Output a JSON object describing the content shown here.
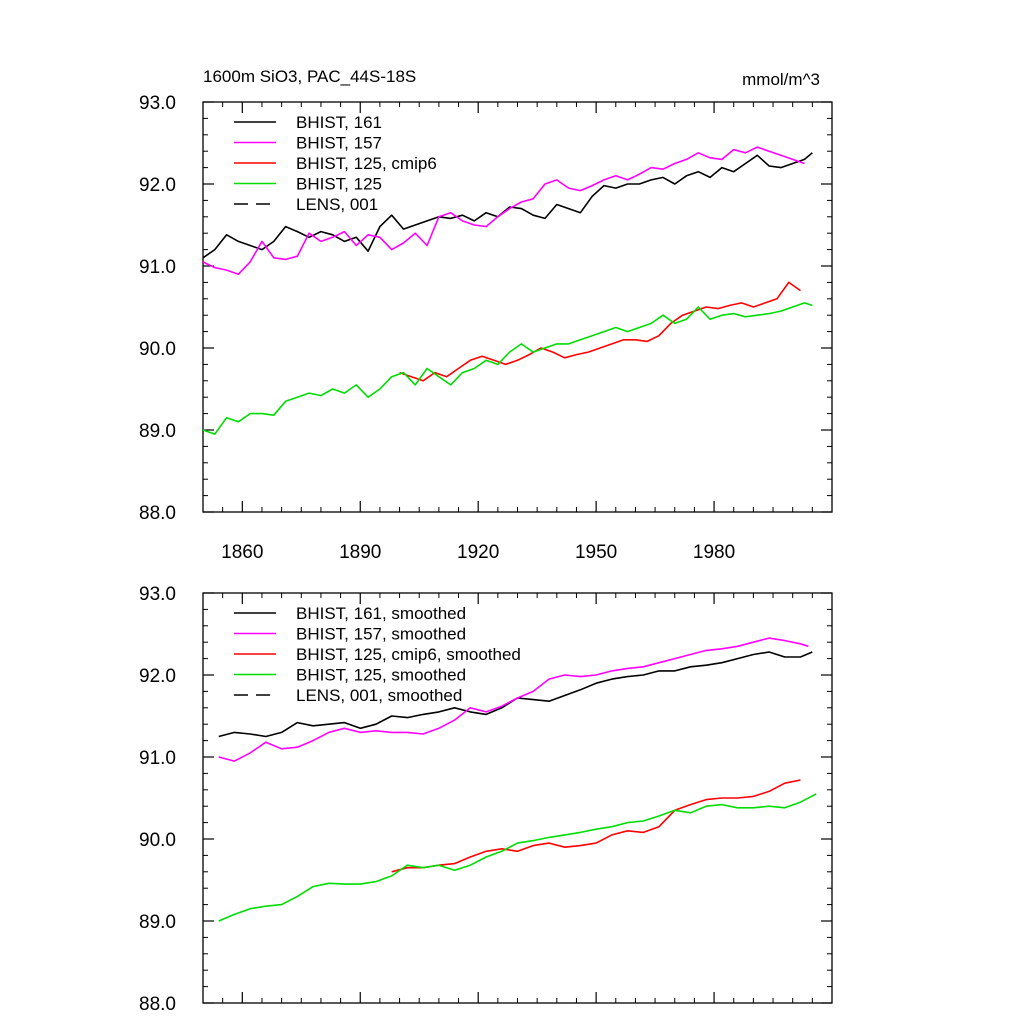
{
  "title": "1600m SiO3, PAC_44S-18S",
  "units": "mmol/m^3",
  "chart_data": [
    {
      "type": "line",
      "panel": "raw",
      "xlim": [
        1850,
        2010
      ],
      "ylim": [
        88.0,
        93.0
      ],
      "xticks": [
        1860,
        1890,
        1920,
        1950,
        1980
      ],
      "xtick_labels": [
        "1860",
        "1890",
        "1920",
        "1950",
        "1980"
      ],
      "yticks": [
        88,
        89,
        90,
        91,
        92,
        93
      ],
      "ytick_labels": [
        "88.0",
        "89.0",
        "90.0",
        "91.0",
        "92.0",
        "93.0"
      ],
      "legend_placement": "top-left",
      "legend": [
        {
          "label": "BHIST, 161",
          "color": "#000000",
          "dash": "solid"
        },
        {
          "label": "BHIST, 157",
          "color": "#ff00ff",
          "dash": "solid"
        },
        {
          "label": "BHIST, 125, cmip6",
          "color": "#ff0000",
          "dash": "solid"
        },
        {
          "label": "BHIST, 125",
          "color": "#00dd00",
          "dash": "solid"
        },
        {
          "label": "LENS, 001",
          "color": "#000000",
          "dash": "dashed"
        }
      ],
      "series": [
        {
          "name": "BHIST, 161",
          "color": "#000000",
          "x": [
            1850,
            1853,
            1856,
            1859,
            1862,
            1865,
            1868,
            1871,
            1874,
            1877,
            1880,
            1883,
            1886,
            1889,
            1892,
            1895,
            1898,
            1901,
            1904,
            1907,
            1910,
            1913,
            1916,
            1919,
            1922,
            1925,
            1928,
            1931,
            1934,
            1937,
            1940,
            1943,
            1946,
            1949,
            1952,
            1955,
            1958,
            1961,
            1964,
            1967,
            1970,
            1973,
            1976,
            1979,
            1982,
            1985,
            1988,
            1991,
            1994,
            1997,
            2000,
            2003,
            2005
          ],
          "y": [
            91.1,
            91.2,
            91.38,
            91.3,
            91.25,
            91.2,
            91.3,
            91.48,
            91.42,
            91.35,
            91.42,
            91.38,
            91.3,
            91.35,
            91.18,
            91.48,
            91.62,
            91.45,
            91.5,
            91.55,
            91.6,
            91.58,
            91.62,
            91.55,
            91.65,
            91.6,
            91.72,
            91.7,
            91.62,
            91.58,
            91.75,
            91.7,
            91.65,
            91.85,
            91.98,
            91.95,
            92.0,
            92.0,
            92.05,
            92.08,
            92.0,
            92.1,
            92.15,
            92.08,
            92.2,
            92.15,
            92.25,
            92.35,
            92.22,
            92.2,
            92.25,
            92.3,
            92.38
          ]
        },
        {
          "name": "BHIST, 157",
          "color": "#ff00ff",
          "x": [
            1850,
            1853,
            1856,
            1859,
            1862,
            1865,
            1868,
            1871,
            1874,
            1877,
            1880,
            1883,
            1886,
            1889,
            1892,
            1895,
            1898,
            1901,
            1904,
            1907,
            1910,
            1913,
            1916,
            1919,
            1922,
            1925,
            1928,
            1931,
            1934,
            1937,
            1940,
            1943,
            1946,
            1949,
            1952,
            1955,
            1958,
            1961,
            1964,
            1967,
            1970,
            1973,
            1976,
            1979,
            1982,
            1985,
            1988,
            1991,
            1994,
            1997,
            2000,
            2003
          ],
          "y": [
            91.05,
            90.98,
            90.95,
            90.9,
            91.05,
            91.3,
            91.1,
            91.08,
            91.12,
            91.4,
            91.3,
            91.35,
            91.42,
            91.25,
            91.38,
            91.35,
            91.2,
            91.28,
            91.4,
            91.25,
            91.6,
            91.65,
            91.55,
            91.5,
            91.48,
            91.6,
            91.7,
            91.78,
            91.82,
            92.0,
            92.05,
            91.95,
            91.92,
            91.98,
            92.05,
            92.1,
            92.05,
            92.12,
            92.2,
            92.18,
            92.25,
            92.3,
            92.38,
            92.32,
            92.3,
            92.42,
            92.38,
            92.45,
            92.4,
            92.35,
            92.3,
            92.25
          ]
        },
        {
          "name": "BHIST, 125, cmip6",
          "color": "#ff0000",
          "x": [
            1900,
            1903,
            1906,
            1909,
            1912,
            1915,
            1918,
            1921,
            1924,
            1927,
            1930,
            1933,
            1936,
            1939,
            1942,
            1945,
            1948,
            1951,
            1954,
            1957,
            1960,
            1963,
            1966,
            1969,
            1972,
            1975,
            1978,
            1981,
            1984,
            1987,
            1990,
            1993,
            1996,
            1999,
            2002
          ],
          "y": [
            89.7,
            89.65,
            89.6,
            89.7,
            89.65,
            89.75,
            89.85,
            89.9,
            89.85,
            89.8,
            89.85,
            89.92,
            90.0,
            89.95,
            89.88,
            89.92,
            89.95,
            90.0,
            90.05,
            90.1,
            90.1,
            90.08,
            90.15,
            90.3,
            90.4,
            90.45,
            90.5,
            90.48,
            90.52,
            90.55,
            90.5,
            90.55,
            90.6,
            90.8,
            90.7
          ]
        },
        {
          "name": "BHIST, 125",
          "color": "#00dd00",
          "x": [
            1850,
            1853,
            1856,
            1859,
            1862,
            1865,
            1868,
            1871,
            1874,
            1877,
            1880,
            1883,
            1886,
            1889,
            1892,
            1895,
            1898,
            1901,
            1904,
            1907,
            1910,
            1913,
            1916,
            1919,
            1922,
            1925,
            1928,
            1931,
            1934,
            1937,
            1940,
            1943,
            1946,
            1949,
            1952,
            1955,
            1958,
            1961,
            1964,
            1967,
            1970,
            1973,
            1976,
            1979,
            1982,
            1985,
            1988,
            1991,
            1994,
            1997,
            2000,
            2003,
            2005
          ],
          "y": [
            89.0,
            88.95,
            89.15,
            89.1,
            89.2,
            89.2,
            89.18,
            89.35,
            89.4,
            89.45,
            89.42,
            89.5,
            89.45,
            89.55,
            89.4,
            89.5,
            89.65,
            89.7,
            89.55,
            89.75,
            89.65,
            89.55,
            89.7,
            89.75,
            89.85,
            89.8,
            89.95,
            90.05,
            89.95,
            90.0,
            90.05,
            90.05,
            90.1,
            90.15,
            90.2,
            90.25,
            90.2,
            90.25,
            90.3,
            90.4,
            90.3,
            90.35,
            90.5,
            90.35,
            90.4,
            90.42,
            90.38,
            90.4,
            90.42,
            90.45,
            90.5,
            90.55,
            90.52
          ]
        }
      ]
    },
    {
      "type": "line",
      "panel": "smoothed",
      "xlim": [
        1850,
        2010
      ],
      "ylim": [
        88.0,
        93.0
      ],
      "xticks": [
        1860,
        1890,
        1920,
        1950,
        1980
      ],
      "yticks": [
        88,
        89,
        90,
        91,
        92,
        93
      ],
      "ytick_labels": [
        "88.0",
        "89.0",
        "90.0",
        "91.0",
        "92.0",
        "93.0"
      ],
      "legend_placement": "top-left",
      "legend": [
        {
          "label": "BHIST, 161, smoothed",
          "color": "#000000",
          "dash": "solid"
        },
        {
          "label": "BHIST, 157, smoothed",
          "color": "#ff00ff",
          "dash": "solid"
        },
        {
          "label": "BHIST, 125, cmip6, smoothed",
          "color": "#ff0000",
          "dash": "solid"
        },
        {
          "label": "BHIST, 125, smoothed",
          "color": "#00dd00",
          "dash": "solid"
        },
        {
          "label": "LENS, 001, smoothed",
          "color": "#000000",
          "dash": "dashed"
        }
      ],
      "series": [
        {
          "name": "BHIST, 161, smoothed",
          "color": "#000000",
          "x": [
            1854,
            1858,
            1862,
            1866,
            1870,
            1874,
            1878,
            1882,
            1886,
            1890,
            1894,
            1898,
            1902,
            1906,
            1910,
            1914,
            1918,
            1922,
            1926,
            1930,
            1934,
            1938,
            1942,
            1946,
            1950,
            1954,
            1958,
            1962,
            1966,
            1970,
            1974,
            1978,
            1982,
            1986,
            1990,
            1994,
            1998,
            2002,
            2005
          ],
          "y": [
            91.25,
            91.3,
            91.28,
            91.25,
            91.3,
            91.42,
            91.38,
            91.4,
            91.42,
            91.35,
            91.4,
            91.5,
            91.48,
            91.52,
            91.55,
            91.6,
            91.55,
            91.52,
            91.6,
            91.72,
            91.7,
            91.68,
            91.75,
            91.82,
            91.9,
            91.95,
            91.98,
            92.0,
            92.05,
            92.05,
            92.1,
            92.12,
            92.15,
            92.2,
            92.25,
            92.28,
            92.22,
            92.22,
            92.28
          ]
        },
        {
          "name": "BHIST, 157, smoothed",
          "color": "#ff00ff",
          "x": [
            1854,
            1858,
            1862,
            1866,
            1870,
            1874,
            1878,
            1882,
            1886,
            1890,
            1894,
            1898,
            1902,
            1906,
            1910,
            1914,
            1918,
            1922,
            1926,
            1930,
            1934,
            1938,
            1942,
            1946,
            1950,
            1954,
            1958,
            1962,
            1966,
            1970,
            1974,
            1978,
            1982,
            1986,
            1990,
            1994,
            1998,
            2002,
            2004
          ],
          "y": [
            91.0,
            90.95,
            91.05,
            91.18,
            91.1,
            91.12,
            91.2,
            91.3,
            91.35,
            91.3,
            91.32,
            91.3,
            91.3,
            91.28,
            91.35,
            91.45,
            91.6,
            91.55,
            91.62,
            91.72,
            91.8,
            91.95,
            92.0,
            91.98,
            92.0,
            92.05,
            92.08,
            92.1,
            92.15,
            92.2,
            92.25,
            92.3,
            92.32,
            92.35,
            92.4,
            92.45,
            92.42,
            92.38,
            92.35
          ]
        },
        {
          "name": "BHIST, 125, cmip6, smoothed",
          "color": "#ff0000",
          "x": [
            1898,
            1902,
            1906,
            1910,
            1914,
            1918,
            1922,
            1926,
            1930,
            1934,
            1938,
            1942,
            1946,
            1950,
            1954,
            1958,
            1962,
            1966,
            1970,
            1974,
            1978,
            1982,
            1986,
            1990,
            1994,
            1998,
            2002
          ],
          "y": [
            89.6,
            89.65,
            89.65,
            89.68,
            89.7,
            89.78,
            89.85,
            89.88,
            89.85,
            89.92,
            89.95,
            89.9,
            89.92,
            89.95,
            90.05,
            90.1,
            90.08,
            90.15,
            90.35,
            90.42,
            90.48,
            90.5,
            90.5,
            90.52,
            90.58,
            90.68,
            90.72
          ]
        },
        {
          "name": "BHIST, 125, smoothed",
          "color": "#00dd00",
          "x": [
            1854,
            1858,
            1862,
            1866,
            1870,
            1874,
            1878,
            1882,
            1886,
            1890,
            1894,
            1898,
            1902,
            1906,
            1910,
            1914,
            1918,
            1922,
            1926,
            1930,
            1934,
            1938,
            1942,
            1946,
            1950,
            1954,
            1958,
            1962,
            1966,
            1970,
            1974,
            1978,
            1982,
            1986,
            1990,
            1994,
            1998,
            2002,
            2006
          ],
          "y": [
            89.0,
            89.08,
            89.15,
            89.18,
            89.2,
            89.3,
            89.42,
            89.46,
            89.45,
            89.45,
            89.48,
            89.55,
            89.68,
            89.65,
            89.68,
            89.62,
            89.68,
            89.78,
            89.85,
            89.95,
            89.98,
            90.02,
            90.05,
            90.08,
            90.12,
            90.15,
            90.2,
            90.22,
            90.28,
            90.35,
            90.32,
            90.4,
            90.42,
            90.38,
            90.38,
            90.4,
            90.38,
            90.45,
            90.55
          ]
        }
      ]
    }
  ]
}
